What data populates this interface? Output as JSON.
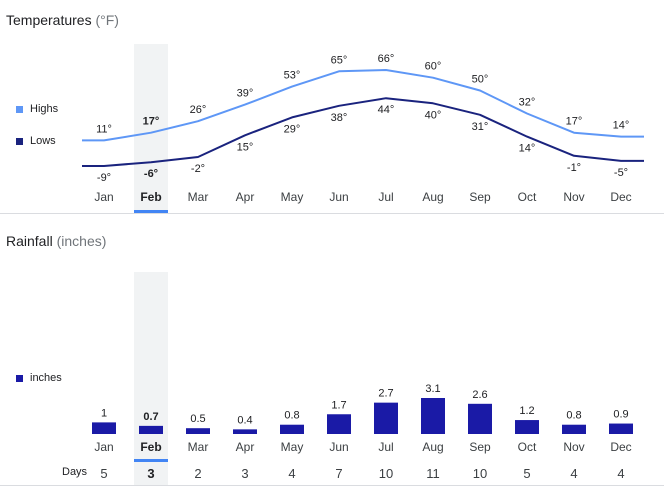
{
  "temperatures": {
    "title": "Temperatures",
    "unit": "(°F)",
    "legend": {
      "highs": "Highs",
      "lows": "Lows"
    },
    "colors": {
      "highs": "#5e97f6",
      "lows": "#1a237e"
    }
  },
  "rainfall": {
    "title": "Rainfall",
    "unit": "(inches)",
    "legend": "inches",
    "color": "#1a1aa6",
    "days_label": "Days"
  },
  "selected_month": "Feb",
  "highlight_color": "#f1f3f4",
  "accent_color": "#4285f4",
  "chart_data": [
    {
      "type": "line",
      "title": "Temperatures (°F)",
      "categories": [
        "Jan",
        "Feb",
        "Mar",
        "Apr",
        "May",
        "Jun",
        "Jul",
        "Aug",
        "Sep",
        "Oct",
        "Nov",
        "Dec"
      ],
      "series": [
        {
          "name": "Highs",
          "values": [
            11,
            17,
            26,
            39,
            53,
            65,
            66,
            60,
            50,
            32,
            17,
            14
          ],
          "labels": [
            "11°",
            "17°",
            "26°",
            "39°",
            "53°",
            "65°",
            "66°",
            "60°",
            "50°",
            "32°",
            "17°",
            "14°"
          ]
        },
        {
          "name": "Lows",
          "values": [
            -9,
            -6,
            -2,
            15,
            29,
            38,
            44,
            40,
            31,
            14,
            -1,
            -5
          ],
          "labels": [
            "-9°",
            "-6°",
            "-2°",
            "15°",
            "29°",
            "38°",
            "44°",
            "40°",
            "31°",
            "14°",
            "-1°",
            "-5°"
          ]
        }
      ],
      "ylim": [
        -15,
        70
      ]
    },
    {
      "type": "bar",
      "title": "Rainfall (inches)",
      "categories": [
        "Jan",
        "Feb",
        "Mar",
        "Apr",
        "May",
        "Jun",
        "Jul",
        "Aug",
        "Sep",
        "Oct",
        "Nov",
        "Dec"
      ],
      "values": [
        1,
        0.7,
        0.5,
        0.4,
        0.8,
        1.7,
        2.7,
        3.1,
        2.6,
        1.2,
        0.8,
        0.9
      ],
      "value_labels": [
        "1",
        "0.7",
        "0.5",
        "0.4",
        "0.8",
        "1.7",
        "2.7",
        "3.1",
        "2.6",
        "1.2",
        "0.8",
        "0.9"
      ],
      "days": [
        "5",
        "3",
        "2",
        "3",
        "4",
        "7",
        "10",
        "11",
        "10",
        "5",
        "4",
        "4"
      ],
      "ylim": [
        0,
        3.1
      ]
    }
  ]
}
